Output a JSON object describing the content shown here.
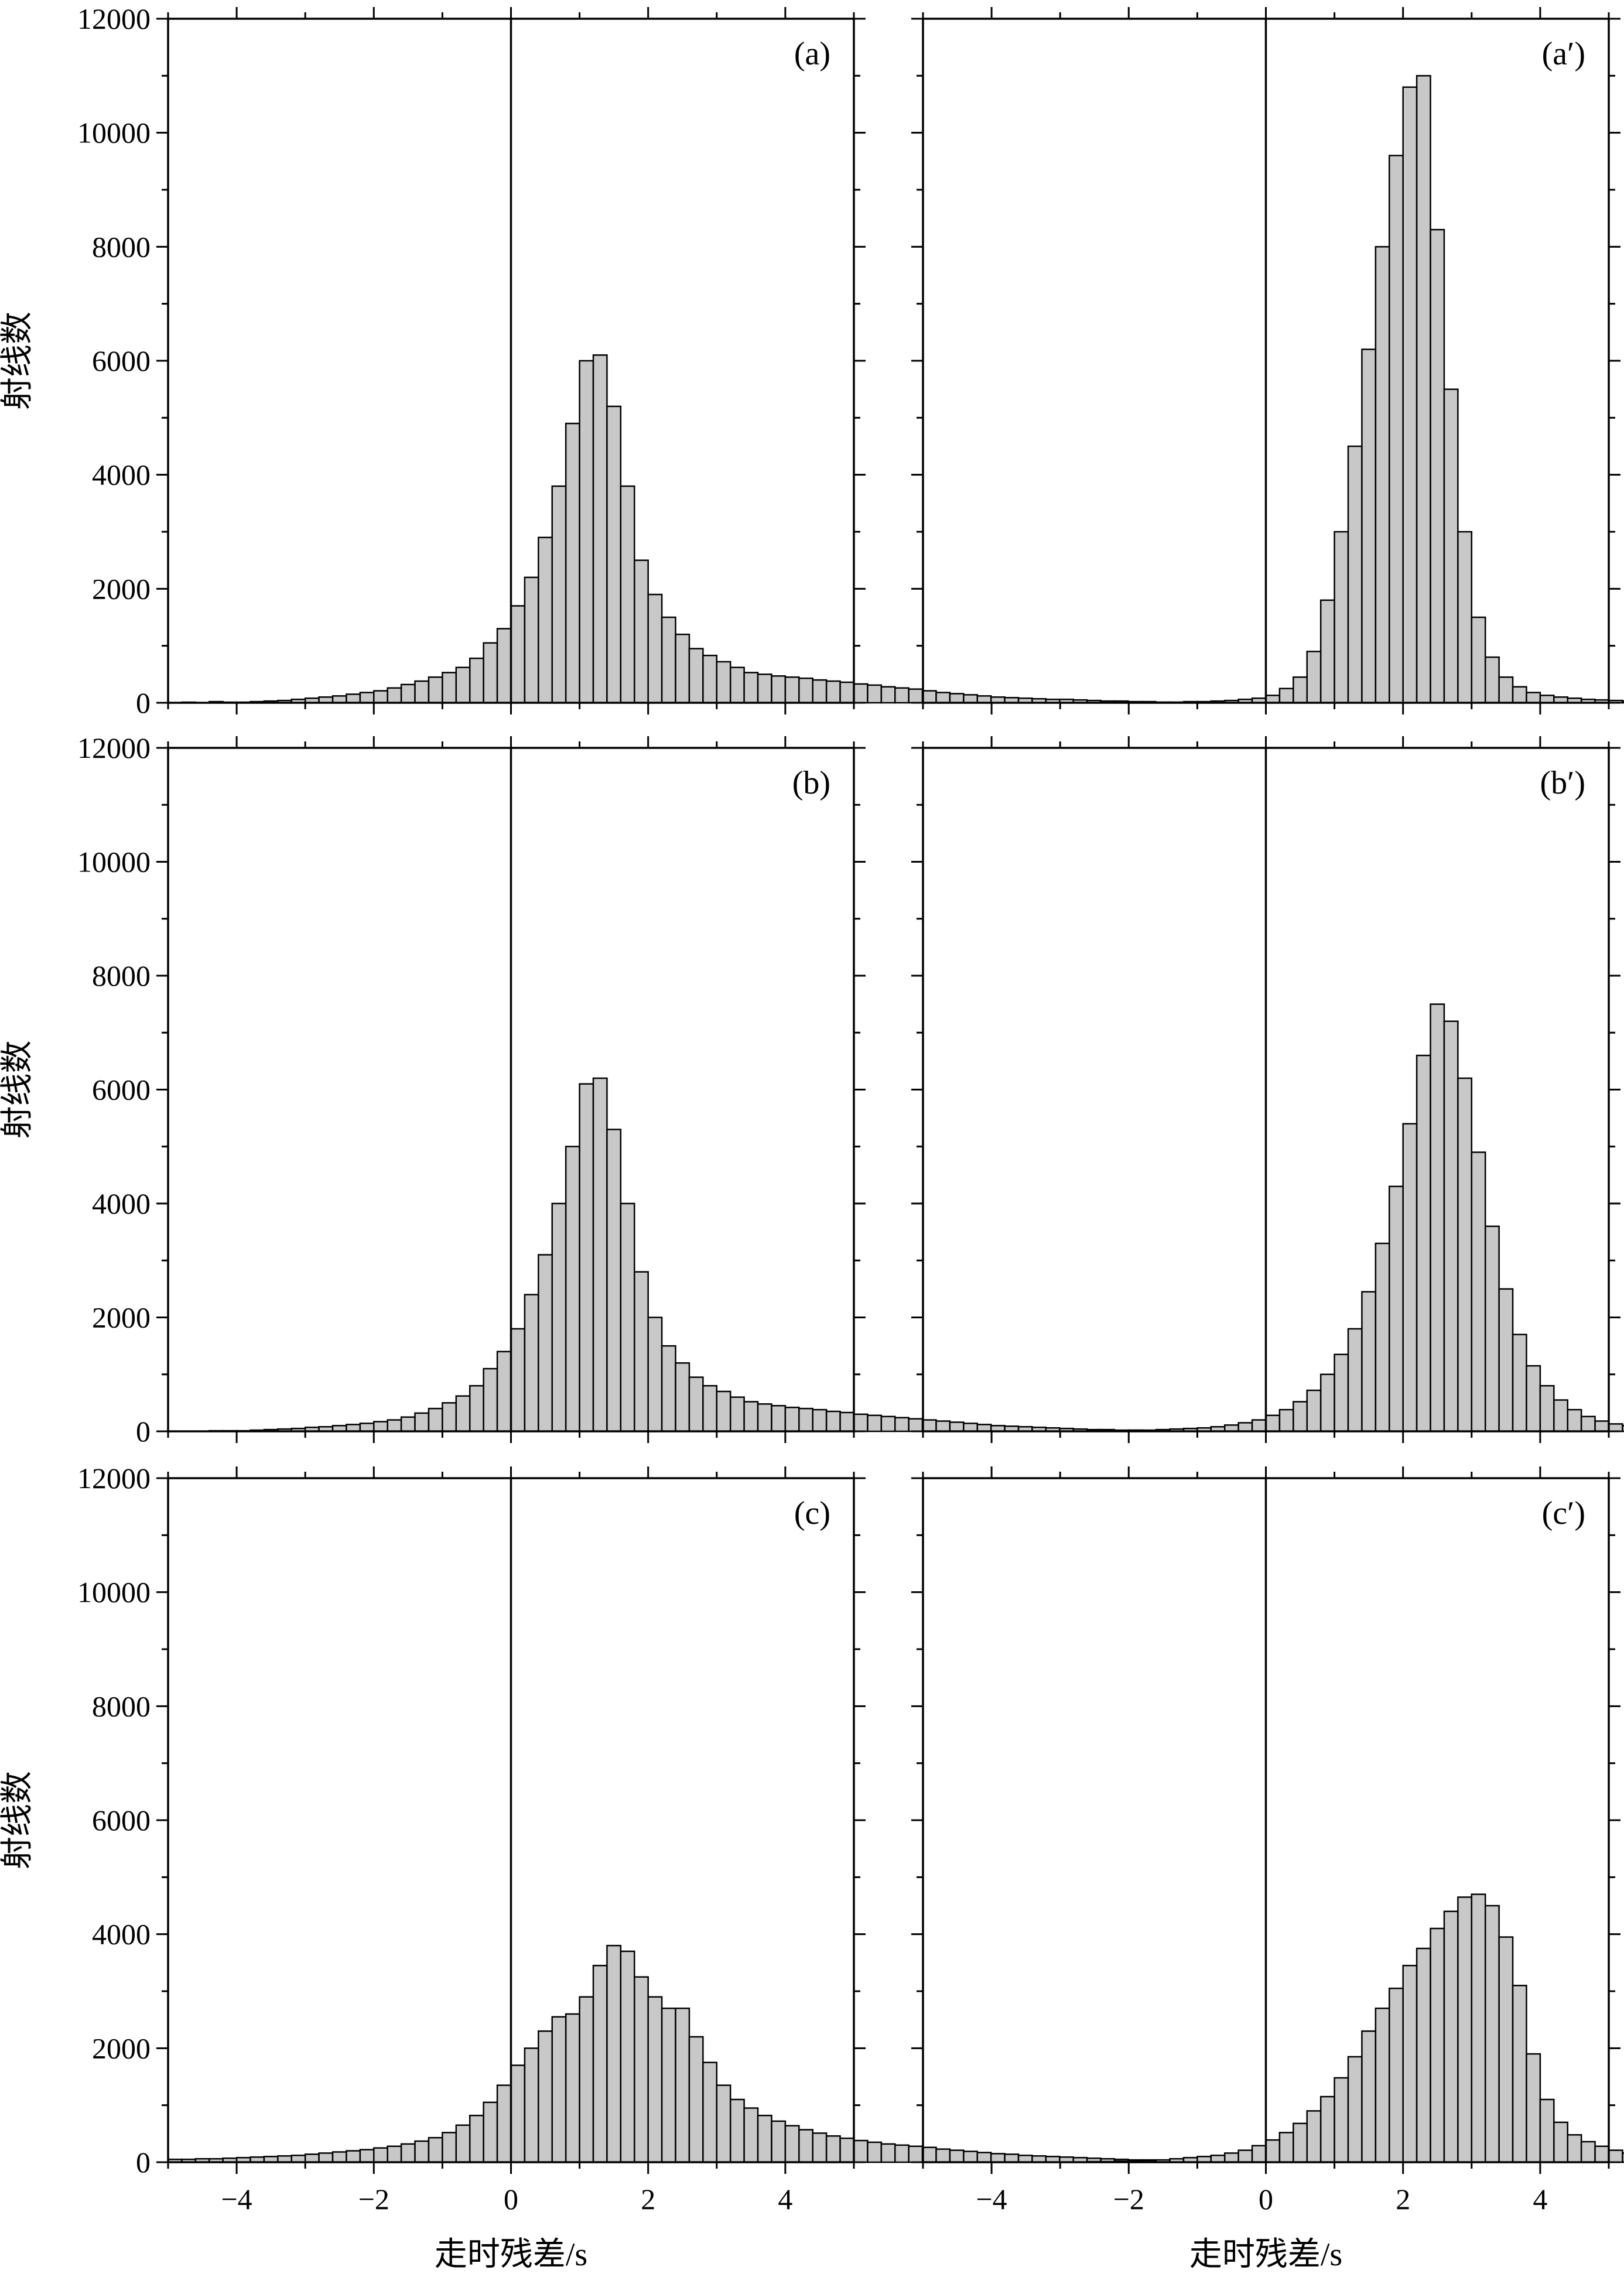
{
  "chart_data": {
    "type": "bar",
    "layout": "3x2 grid of histogram panels sharing axes",
    "bar_fill": "#c8c8c8",
    "bar_stroke": "#000000",
    "zero_line": "vertical line at x = 0",
    "xlabel": "走时残差/s",
    "ylabel": "射线数",
    "xlim": [
      -5,
      5
    ],
    "ylim": [
      0,
      12000
    ],
    "x_ticks": [
      -4,
      -2,
      0,
      2,
      4
    ],
    "x_tick_labels": [
      "−4",
      "−2",
      "0",
      "2",
      "4"
    ],
    "y_ticks": [
      0,
      2000,
      4000,
      6000,
      8000,
      10000,
      12000
    ],
    "y_tick_labels": [
      "0",
      "2000",
      "4000",
      "6000",
      "8000",
      "10000",
      "12000"
    ],
    "bin_width": 0.2,
    "bin_start": -5.0,
    "panels": [
      {
        "label": "(a)",
        "values": [
          0,
          10,
          0,
          20,
          10,
          10,
          20,
          30,
          40,
          60,
          80,
          100,
          120,
          150,
          180,
          210,
          260,
          320,
          380,
          450,
          530,
          620,
          780,
          1050,
          1300,
          1700,
          2200,
          2900,
          3800,
          4900,
          6000,
          6100,
          5200,
          3800,
          2500,
          1900,
          1500,
          1200,
          950,
          830,
          720,
          620,
          530,
          500,
          470,
          450,
          430,
          400,
          380,
          360,
          330,
          310,
          280,
          260,
          240,
          210,
          180,
          160,
          140,
          120,
          100,
          90,
          80,
          70,
          60,
          60,
          50,
          40,
          30,
          30,
          20,
          20,
          10,
          10,
          10,
          0,
          0,
          0,
          0,
          0
        ]
      },
      {
        "label": "(a′)",
        "values": [
          0,
          0,
          0,
          0,
          0,
          0,
          0,
          0,
          0,
          0,
          0,
          0,
          0,
          0,
          0,
          0,
          10,
          10,
          10,
          20,
          20,
          30,
          40,
          60,
          80,
          130,
          250,
          450,
          900,
          1800,
          3000,
          4500,
          6200,
          8000,
          9600,
          10800,
          11000,
          8300,
          5500,
          3000,
          1500,
          800,
          450,
          280,
          180,
          130,
          100,
          80,
          60,
          50,
          40,
          30,
          25,
          20,
          15,
          10,
          10,
          10,
          0,
          0,
          0,
          0,
          0,
          0,
          0,
          0,
          0,
          0,
          0,
          0,
          0,
          0,
          0,
          0,
          0,
          0,
          0,
          0,
          0,
          0
        ]
      },
      {
        "label": "(b)",
        "values": [
          0,
          0,
          0,
          10,
          10,
          10,
          20,
          30,
          40,
          50,
          70,
          80,
          100,
          120,
          140,
          170,
          200,
          250,
          320,
          400,
          500,
          620,
          800,
          1100,
          1400,
          1800,
          2400,
          3100,
          4000,
          5000,
          6100,
          6200,
          5300,
          4000,
          2800,
          2000,
          1500,
          1200,
          950,
          800,
          700,
          600,
          520,
          480,
          450,
          420,
          400,
          380,
          350,
          330,
          300,
          280,
          260,
          240,
          220,
          200,
          180,
          160,
          140,
          120,
          100,
          90,
          80,
          70,
          60,
          50,
          40,
          30,
          30,
          20,
          20,
          10,
          10,
          10,
          0,
          0,
          0,
          0,
          0,
          0
        ]
      },
      {
        "label": "(b′)",
        "values": [
          0,
          0,
          0,
          0,
          0,
          0,
          0,
          0,
          0,
          0,
          0,
          0,
          10,
          10,
          10,
          20,
          20,
          30,
          40,
          50,
          60,
          80,
          110,
          150,
          200,
          280,
          380,
          520,
          720,
          1000,
          1350,
          1800,
          2450,
          3300,
          4300,
          5400,
          6600,
          7500,
          7200,
          6200,
          4900,
          3600,
          2500,
          1700,
          1150,
          800,
          550,
          380,
          260,
          180,
          130,
          100,
          70,
          50,
          40,
          30,
          20,
          20,
          10,
          10,
          0,
          0,
          0,
          0,
          0,
          0,
          0,
          0,
          0,
          0,
          0,
          0,
          0,
          0,
          0,
          0,
          0,
          0,
          0,
          0
        ]
      },
      {
        "label": "(c)",
        "values": [
          50,
          50,
          60,
          60,
          70,
          80,
          90,
          100,
          110,
          120,
          140,
          160,
          180,
          200,
          220,
          250,
          280,
          320,
          370,
          430,
          520,
          650,
          820,
          1050,
          1350,
          1700,
          2000,
          2300,
          2550,
          2600,
          2900,
          3450,
          3800,
          3700,
          3250,
          2900,
          2700,
          2700,
          2200,
          1750,
          1350,
          1100,
          950,
          820,
          720,
          640,
          570,
          510,
          460,
          420,
          380,
          350,
          320,
          300,
          280,
          260,
          230,
          210,
          190,
          170,
          150,
          140,
          120,
          110,
          100,
          90,
          80,
          70,
          60,
          50,
          40,
          40,
          30,
          30,
          20,
          20,
          10,
          10,
          10,
          0
        ]
      },
      {
        "label": "(c′)",
        "values": [
          0,
          0,
          0,
          0,
          0,
          0,
          0,
          0,
          0,
          0,
          0,
          0,
          10,
          10,
          20,
          20,
          30,
          40,
          60,
          80,
          100,
          120,
          160,
          210,
          290,
          390,
          520,
          680,
          900,
          1150,
          1480,
          1850,
          2300,
          2700,
          3050,
          3450,
          3750,
          4100,
          4400,
          4650,
          4700,
          4500,
          3950,
          3100,
          1900,
          1100,
          700,
          480,
          360,
          280,
          210,
          160,
          120,
          90,
          70,
          50,
          40,
          30,
          20,
          20,
          10,
          10,
          0,
          0,
          0,
          0,
          0,
          0,
          0,
          0,
          0,
          0,
          0,
          0,
          0,
          0,
          0,
          0,
          0,
          0
        ]
      }
    ]
  }
}
